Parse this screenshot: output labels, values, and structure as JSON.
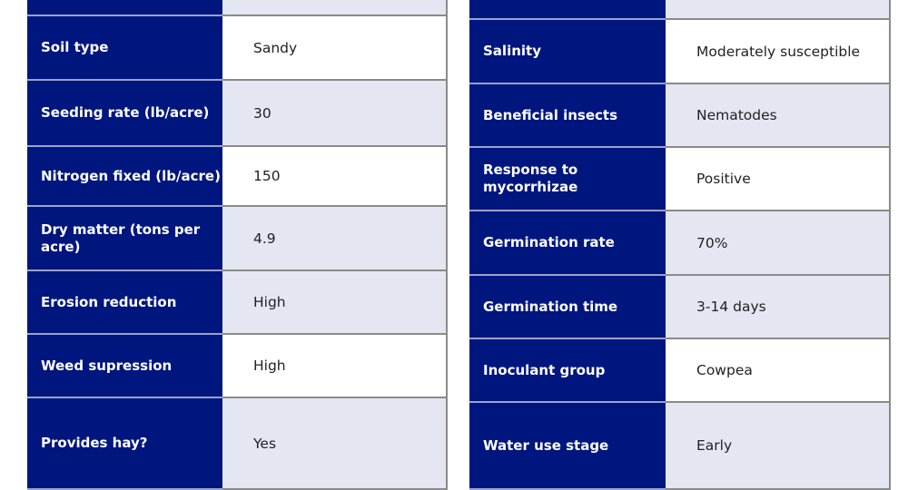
{
  "colors": {
    "label_bg": "#00167f",
    "alt_bg": "#e4e6f2",
    "text": "#222222"
  },
  "left_table": [
    {
      "label": "",
      "value": "",
      "shade": "lav"
    },
    {
      "label": "Soil type",
      "value": "Sandy",
      "shade": "wht"
    },
    {
      "label": "Seeding rate (lb/acre)",
      "value": "30",
      "shade": "lav"
    },
    {
      "label": "Nitrogen fixed (lb/acre)",
      "value": "150",
      "shade": "wht"
    },
    {
      "label": "Dry matter (tons per acre)",
      "value": "4.9",
      "shade": "lav"
    },
    {
      "label": "Erosion reduction",
      "value": "High",
      "shade": "lav"
    },
    {
      "label": "Weed supression",
      "value": "High",
      "shade": "wht"
    },
    {
      "label": "Provides hay?",
      "value": "Yes",
      "shade": "lav"
    }
  ],
  "right_table": [
    {
      "label": "",
      "value": "",
      "shade": "lav"
    },
    {
      "label": "Salinity",
      "value": "Moderately susceptible",
      "shade": "wht"
    },
    {
      "label": "Beneficial insects",
      "value": "Nematodes",
      "shade": "lav"
    },
    {
      "label": "Response to mycorrhizae",
      "value": "Positive",
      "shade": "wht"
    },
    {
      "label": "Germination rate",
      "value": "70%",
      "shade": "lav"
    },
    {
      "label": "Germination time",
      "value": "3-14 days",
      "shade": "lav"
    },
    {
      "label": "Inoculant group",
      "value": "Cowpea",
      "shade": "wht"
    },
    {
      "label": "Water use stage",
      "value": "Early",
      "shade": "lav"
    }
  ]
}
